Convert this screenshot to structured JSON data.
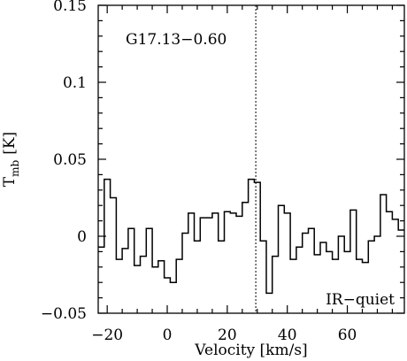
{
  "chart_data": {
    "type": "line",
    "style": "step",
    "xlabel": "Velocity [km/s]",
    "ylabel_main": "T",
    "ylabel_sub": "mb",
    "ylabel_unit": "[K]",
    "xlim": [
      -23,
      79
    ],
    "ylim": [
      -0.05,
      0.15
    ],
    "x_ticks": [
      -20,
      0,
      20,
      40,
      60
    ],
    "x_tick_labels": [
      "−20",
      "0",
      "20",
      "40",
      "60"
    ],
    "y_ticks": [
      -0.05,
      0,
      0.05,
      0.1,
      0.15
    ],
    "y_tick_labels": [
      "−0.05",
      "0",
      "0.05",
      "0.1",
      "0.15"
    ],
    "reference_velocity": 29.5,
    "annotations": {
      "source": "G17.13−0.60",
      "category": "IR−quiet"
    },
    "x": [
      -23,
      -21,
      -19,
      -17,
      -15,
      -13,
      -11,
      -9,
      -7,
      -5,
      -3,
      -1,
      1,
      3,
      5,
      7,
      9,
      11,
      13,
      15,
      17,
      19,
      21,
      23,
      25,
      27,
      29,
      31,
      33,
      35,
      37,
      39,
      41,
      43,
      45,
      47,
      49,
      51,
      53,
      55,
      57,
      59,
      61,
      63,
      65,
      67,
      69,
      71,
      73,
      75,
      77
    ],
    "y": [
      -0.007,
      0.037,
      0.025,
      -0.015,
      -0.008,
      0.005,
      -0.019,
      -0.013,
      0.005,
      -0.02,
      -0.016,
      -0.027,
      -0.03,
      -0.015,
      0.002,
      0.015,
      -0.003,
      0.012,
      0.012,
      0.015,
      -0.003,
      0.016,
      0.015,
      0.013,
      0.022,
      0.037,
      0.035,
      -0.003,
      -0.037,
      -0.013,
      0.02,
      0.015,
      -0.015,
      -0.007,
      0.002,
      0.005,
      -0.012,
      -0.004,
      -0.01,
      -0.015,
      0.0,
      -0.01,
      0.017,
      -0.015,
      -0.017,
      -0.003,
      0.0,
      0.027,
      0.016,
      0.011,
      0.004
    ]
  }
}
